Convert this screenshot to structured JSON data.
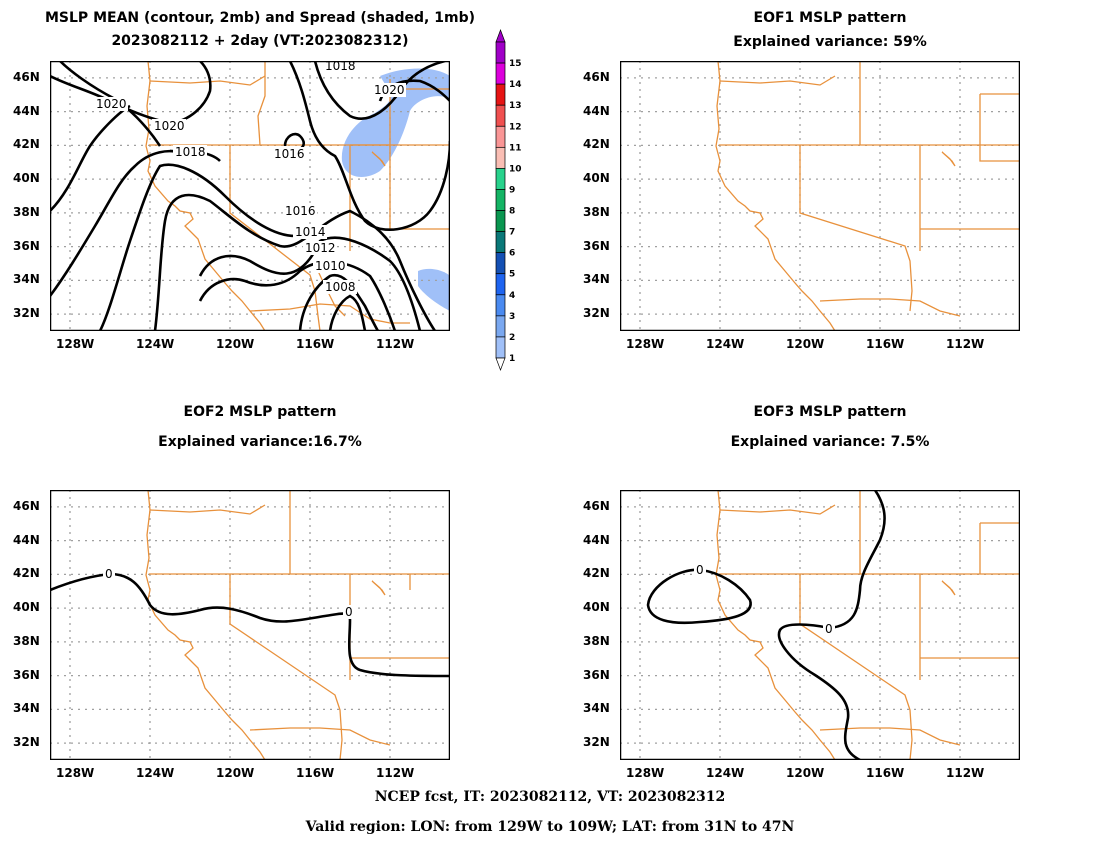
{
  "top_left": {
    "title1": "MSLP MEAN (contour, 2mb) and Spread (shaded, 1mb)",
    "title2": "2023082112 + 2day (VT:2023082312)"
  },
  "top_right": {
    "title1": "EOF1 MSLP pattern",
    "title2": "Explained variance: 59%"
  },
  "bottom_left": {
    "title1": "EOF2 MSLP pattern",
    "title2": "Explained variance:16.7%"
  },
  "bottom_right": {
    "title1": "EOF3 MSLP pattern",
    "title2": "Explained variance: 7.5%"
  },
  "footer": {
    "line1": "NCEP fcst, IT: 2023082112, VT: 2023082312",
    "line2": "Valid region: LON: from 129W to 109W; LAT: from 31N to 47N"
  },
  "colors": {
    "border": "#e8913c",
    "contour": "#000000",
    "shade_light": "#a0c0f8"
  },
  "chart_data": [
    {
      "type": "heatmap",
      "title": "MSLP MEAN (contour, 2mb) and Spread (shaded, 1mb)",
      "subtitle": "2023082112 + 2day (VT:2023082312)",
      "x_ticks": [
        "128W",
        "124W",
        "120W",
        "116W",
        "112W"
      ],
      "y_ticks": [
        "46N",
        "44N",
        "42N",
        "40N",
        "38N",
        "36N",
        "34N",
        "32N"
      ],
      "xlim": [
        -129,
        -109
      ],
      "ylim": [
        31,
        47
      ],
      "contour_labels": [
        "1020",
        "1020",
        "1018",
        "1016",
        "1018",
        "1020",
        "1016",
        "1014",
        "1012",
        "1010",
        "1008",
        "1016",
        "1018"
      ],
      "colorbar_levels": [
        1,
        2,
        3,
        4,
        5,
        6,
        7,
        8,
        9,
        10,
        11,
        12,
        13,
        14,
        15
      ],
      "colorbar_colors": [
        "#b4d2ff",
        "#a0c0f8",
        "#7aa8f0",
        "#4a8af0",
        "#1e64f0",
        "#1450b4",
        "#0a7878",
        "#0a9650",
        "#14b464",
        "#28d28c",
        "#fabeb4",
        "#fa9696",
        "#f05050",
        "#e61414",
        "#dc00dc",
        "#a000c8"
      ],
      "spread_value_shaded": 1,
      "grid": true
    },
    {
      "type": "heatmap",
      "title": "EOF1 MSLP pattern",
      "subtitle": "Explained variance: 59%",
      "explained_variance_pct": 59,
      "x_ticks": [
        "128W",
        "124W",
        "120W",
        "116W",
        "112W"
      ],
      "y_ticks": [
        "46N",
        "44N",
        "42N",
        "40N",
        "38N",
        "36N",
        "34N",
        "32N"
      ],
      "xlim": [
        -129,
        -109
      ],
      "ylim": [
        31,
        47
      ],
      "contour_labels": [],
      "grid": true
    },
    {
      "type": "heatmap",
      "title": "EOF2 MSLP pattern",
      "subtitle": "Explained variance:16.7%",
      "explained_variance_pct": 16.7,
      "x_ticks": [
        "128W",
        "124W",
        "120W",
        "116W",
        "112W"
      ],
      "y_ticks": [
        "46N",
        "44N",
        "42N",
        "40N",
        "38N",
        "36N",
        "34N",
        "32N"
      ],
      "xlim": [
        -129,
        -109
      ],
      "ylim": [
        31,
        47
      ],
      "contour_labels": [
        "0",
        "0"
      ],
      "grid": true
    },
    {
      "type": "heatmap",
      "title": "EOF3 MSLP pattern",
      "subtitle": "Explained variance: 7.5%",
      "explained_variance_pct": 7.5,
      "x_ticks": [
        "128W",
        "124W",
        "120W",
        "116W",
        "112W"
      ],
      "y_ticks": [
        "46N",
        "44N",
        "42N",
        "40N",
        "38N",
        "36N",
        "34N",
        "32N"
      ],
      "xlim": [
        -129,
        -109
      ],
      "ylim": [
        31,
        47
      ],
      "contour_labels": [
        "0",
        "0"
      ],
      "grid": true
    }
  ]
}
